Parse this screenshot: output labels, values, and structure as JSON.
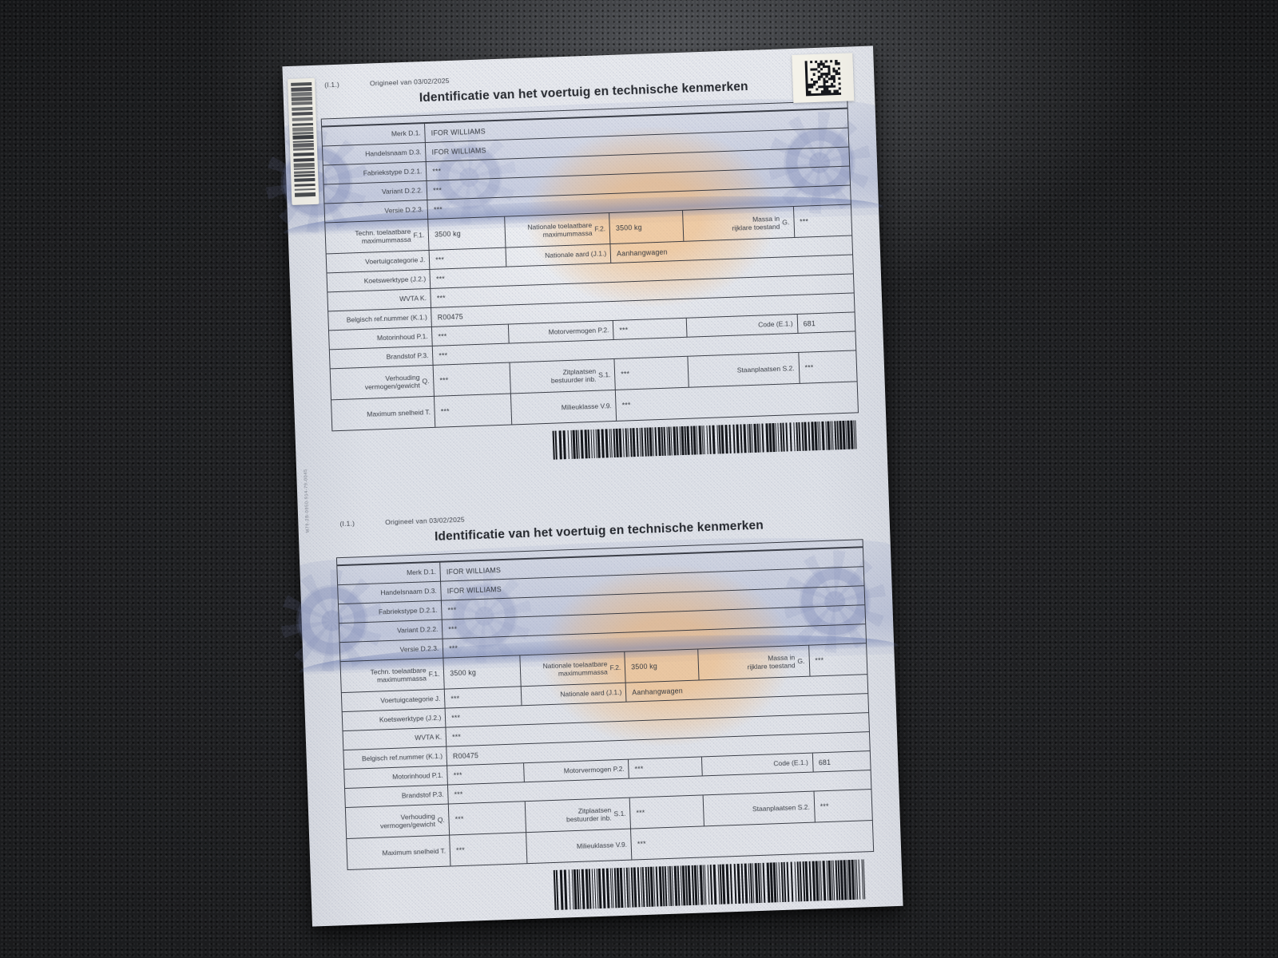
{
  "photo": {
    "surface_color": "#1a1b1d",
    "paper_color": "#e3e6eb",
    "band_blue": "#8e9ac4",
    "watermark_orange": "#f2b470",
    "ink": "#2e3238"
  },
  "document": {
    "form_code": "(I.1.)",
    "origin_note": "Origineel van 03/02/2025",
    "title": "Identificatie van het voertuig en technische kenmerken",
    "microtext_serial": "M79-2B-0950-914-79-0045",
    "table": {
      "rows": [
        {
          "cells": [
            {
              "t": "label",
              "lines": [
                "Merk D.1."
              ]
            },
            {
              "t": "value",
              "text": "IFOR WILLIAMS"
            }
          ]
        },
        {
          "cells": [
            {
              "t": "label",
              "lines": [
                "Handelsnaam D.3."
              ]
            },
            {
              "t": "value",
              "text": "IFOR WILLIAMS"
            }
          ]
        },
        {
          "cells": [
            {
              "t": "label",
              "lines": [
                "Fabriekstype D.2.1."
              ]
            },
            {
              "t": "value",
              "text": "***"
            }
          ]
        },
        {
          "cells": [
            {
              "t": "label",
              "lines": [
                "Variant D.2.2."
              ]
            },
            {
              "t": "value",
              "text": "***"
            }
          ]
        },
        {
          "cells": [
            {
              "t": "label",
              "lines": [
                "Versie D.2.3."
              ]
            },
            {
              "t": "value",
              "text": "***"
            }
          ]
        },
        {
          "tall": true,
          "cells": [
            {
              "t": "label",
              "lines": [
                "Techn. toelaatbare",
                "maximummassa"
              ],
              "code": "F.1."
            },
            {
              "t": "value",
              "text": "3500 kg"
            },
            {
              "t": "label",
              "lines": [
                "Nationale toelaatbare",
                "maximummassa"
              ],
              "code": "F.2."
            },
            {
              "t": "value",
              "text": "3500 kg"
            },
            {
              "t": "label",
              "lines": [
                "Massa in",
                "rijklare toestand"
              ],
              "code": "G."
            },
            {
              "t": "value",
              "text": "***"
            }
          ]
        },
        {
          "cells": [
            {
              "t": "label",
              "lines": [
                "Voertuigcategorie J."
              ]
            },
            {
              "t": "value",
              "text": "***"
            },
            {
              "t": "label",
              "lines": [
                "Nationale aard (J.1.)"
              ]
            },
            {
              "t": "value",
              "text": "Aanhangwagen"
            }
          ]
        },
        {
          "cells": [
            {
              "t": "label",
              "lines": [
                "Koetswerktype (J.2.)"
              ]
            },
            {
              "t": "value",
              "text": "***"
            }
          ]
        },
        {
          "cells": [
            {
              "t": "label",
              "lines": [
                "WVTA K."
              ]
            },
            {
              "t": "value",
              "text": "***"
            }
          ]
        },
        {
          "cells": [
            {
              "t": "label",
              "lines": [
                "Belgisch ref.nummer (K.1.)"
              ]
            },
            {
              "t": "value",
              "text": "R00475"
            }
          ]
        },
        {
          "cells": [
            {
              "t": "label",
              "lines": [
                "Motorinhoud P.1."
              ]
            },
            {
              "t": "value",
              "text": "***"
            },
            {
              "t": "label",
              "lines": [
                "Motorvermogen P.2."
              ]
            },
            {
              "t": "value",
              "text": "***"
            },
            {
              "t": "label",
              "lines": [
                "Code (E.1.)"
              ]
            },
            {
              "t": "value",
              "text": "681"
            }
          ]
        },
        {
          "cells": [
            {
              "t": "label",
              "lines": [
                "Brandstof P.3."
              ]
            },
            {
              "t": "value",
              "text": "***"
            }
          ]
        },
        {
          "tall": true,
          "cells": [
            {
              "t": "label",
              "lines": [
                "Verhouding",
                "vermogen/gewicht"
              ],
              "code": "Q."
            },
            {
              "t": "value",
              "text": "***"
            },
            {
              "t": "label",
              "lines": [
                "Zitplaatsen",
                "bestuurder inb."
              ],
              "code": "S.1."
            },
            {
              "t": "value",
              "text": "***"
            },
            {
              "t": "label",
              "lines": [
                "Staanplaatsen S.2."
              ]
            },
            {
              "t": "value",
              "text": "***"
            }
          ]
        },
        {
          "tall": true,
          "cells": [
            {
              "t": "label",
              "lines": [
                "Maximum snelheid T."
              ]
            },
            {
              "t": "value",
              "text": "***"
            },
            {
              "t": "label",
              "lines": [
                "Milieuklasse V.9."
              ]
            },
            {
              "t": "value",
              "text": "***"
            }
          ]
        }
      ]
    }
  }
}
